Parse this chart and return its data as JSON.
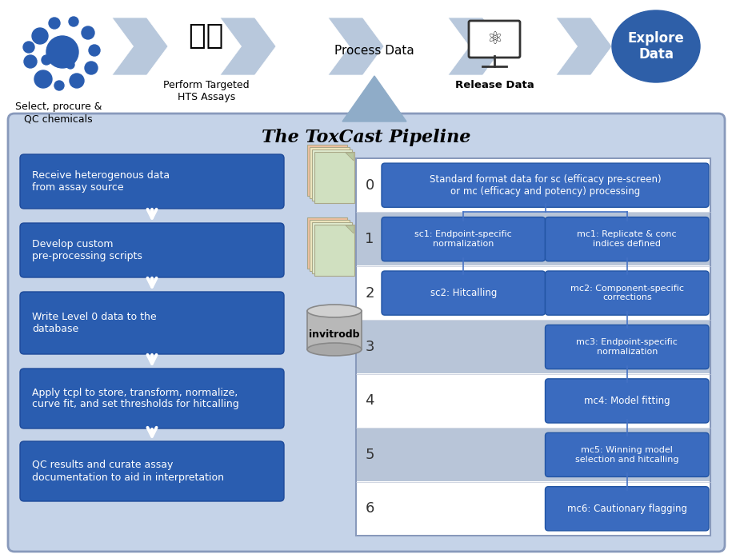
{
  "title": "The ToxCast Pipeline",
  "bg_color": "#ffffff",
  "main_box_bg": "#c5d3e8",
  "main_box_border": "#8899bb",
  "blue_box_color": "#2a5db0",
  "right_panel_bg": "#ffffff",
  "right_panel_border": "#8899bb",
  "rbox_fc": "#3a6bbf",
  "rbox_ec": "#2255a4",
  "arrow_fc": "#b8c8dc",
  "explore_color": "#2e5fa8",
  "left_boxes": [
    "Receive heterogenous data\nfrom assay source",
    "Develop custom\npre-processing scripts",
    "Write Level 0 data to the\ndatabase",
    "Apply tcpl to store, transform, normalize,\ncurve fit, and set thresholds for hitcalling",
    "QC results and curate assay\ndocumentation to aid in interpretation"
  ],
  "level_labels": [
    "0",
    "1",
    "2",
    "3",
    "4",
    "5",
    "6"
  ],
  "level0_text": "Standard format data for sc (efficacy pre-screen)\nor mc (efficacy and potency) processing",
  "sc1_text": "sc1: Endpoint-specific\nnormalization",
  "sc2_text": "sc2: Hitcalling",
  "mc1_text": "mc1: Replicate & conc\nindices defined",
  "mc2_text": "mc2: Component-specific\ncorrections",
  "mc3_text": "mc3: Endpoint-specific\nnormalization",
  "mc4_text": "mc4: Model fitting",
  "mc5_text": "mc5: Winning model\nselection and hitcalling",
  "mc6_text": "mc6: Cautionary flagging",
  "row_colors": [
    "#f0f4f8",
    "#c0cddc",
    "#f0f4f8",
    "#c0cddc",
    "#f0f4f8",
    "#c0cddc",
    "#f0f4f8"
  ],
  "dot_color": "#2a5db0",
  "line_color": "#4472c4"
}
